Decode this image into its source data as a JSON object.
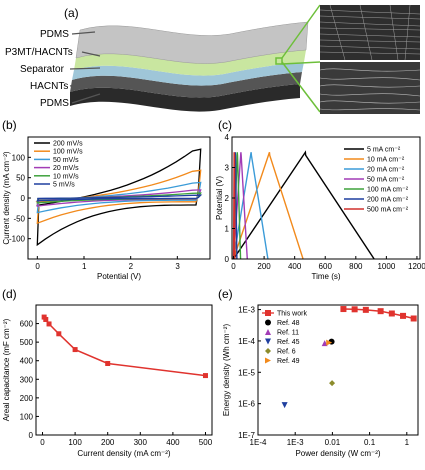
{
  "panels": {
    "a": "(a)",
    "b": "(b)",
    "c": "(c)",
    "d": "(d)",
    "e": "(e)"
  },
  "schematic": {
    "layers": [
      "PDMS",
      "P3MT/HACNTs",
      "Separator",
      "HACNTs",
      "PDMS"
    ],
    "colors": {
      "pdms": "#b9b9b9",
      "p3mt": "#c9e6a0",
      "separator": "#9fc6d8",
      "hacnt": "#3c3c3c",
      "zoom_line": "#6dbf3a"
    }
  },
  "chart_data": [
    {
      "type": "line",
      "title": "",
      "xlabel": "Potential (V)",
      "ylabel": "Current density (mA cm⁻²)",
      "xlim": [
        -0.2,
        3.7
      ],
      "ylim": [
        -150,
        150
      ],
      "xticks": [
        0,
        1,
        2,
        3
      ],
      "yticks": [
        -100,
        -50,
        0,
        50,
        100
      ],
      "legend_position": "top-left",
      "series": [
        {
          "name": "200 mV/s",
          "color": "#000000",
          "upper_at_3_5V": 120,
          "lower_at_0V": -115
        },
        {
          "name": "100 mV/s",
          "color": "#f28a1c",
          "upper_at_3_5V": 68,
          "lower_at_0V": -62
        },
        {
          "name": "50 mV/s",
          "color": "#3b9bd8",
          "upper_at_3_5V": 38,
          "lower_at_0V": -36
        },
        {
          "name": "20 mV/s",
          "color": "#a23cb6",
          "upper_at_3_5V": 20,
          "lower_at_0V": -20
        },
        {
          "name": "10 mV/s",
          "color": "#3ea23c",
          "upper_at_3_5V": 12,
          "lower_at_0V": -12
        },
        {
          "name": "5 mV/s",
          "color": "#1f3f9f",
          "upper_at_3_5V": 7,
          "lower_at_0V": -7
        }
      ]
    },
    {
      "type": "line",
      "title": "",
      "xlabel": "Time (s)",
      "ylabel": "Potential (V)",
      "xlim": [
        -10,
        1220
      ],
      "ylim": [
        0,
        4
      ],
      "xticks": [
        0,
        200,
        400,
        600,
        800,
        1000,
        1200
      ],
      "yticks": [
        0,
        1,
        2,
        3,
        4
      ],
      "legend_position": "top-right",
      "series": [
        {
          "name": "5 mA cm⁻²",
          "color": "#000000",
          "peak_time": 470,
          "end_time": 920,
          "peak_V": 3.5
        },
        {
          "name": "10 mA cm⁻²",
          "color": "#f28a1c",
          "peak_time": 235,
          "end_time": 455,
          "peak_V": 3.5
        },
        {
          "name": "20 mA cm⁻²",
          "color": "#3b9bd8",
          "peak_time": 115,
          "end_time": 225,
          "peak_V": 3.5
        },
        {
          "name": "50 mA cm⁻²",
          "color": "#a23cb6",
          "peak_time": 48,
          "end_time": 90,
          "peak_V": 3.5
        },
        {
          "name": "100 mA cm⁻²",
          "color": "#3ea23c",
          "peak_time": 24,
          "end_time": 46,
          "peak_V": 3.5
        },
        {
          "name": "200 mA cm⁻²",
          "color": "#1f3f9f",
          "peak_time": 11,
          "end_time": 22,
          "peak_V": 3.5
        },
        {
          "name": "500 mA cm⁻²",
          "color": "#d0312d",
          "peak_time": 4,
          "end_time": 9,
          "peak_V": 3.5
        }
      ]
    },
    {
      "type": "line",
      "title": "",
      "xlabel": "Current density (mA cm⁻²)",
      "ylabel": "Areal capacitance (mF cm⁻²)",
      "xlim": [
        -20,
        520
      ],
      "ylim": [
        0,
        700
      ],
      "xticks": [
        0,
        100,
        200,
        300,
        400,
        500
      ],
      "yticks": [
        0,
        100,
        200,
        300,
        400,
        500,
        600
      ],
      "series": [
        {
          "name": "",
          "color": "#e0332e",
          "x": [
            5,
            10,
            20,
            50,
            100,
            200,
            500
          ],
          "y": [
            635,
            622,
            598,
            545,
            460,
            385,
            320
          ]
        }
      ]
    },
    {
      "type": "scatter",
      "title": "",
      "xlabel": "Power density (W cm⁻²)",
      "ylabel": "Energy density (Wh cm⁻²)",
      "xscale": "log",
      "yscale": "log",
      "xlim": [
        0.0001,
        2
      ],
      "ylim": [
        1e-07,
        0.0014
      ],
      "xticks": [
        "1E-4",
        "1E-3",
        "0.01",
        "0.1",
        "1"
      ],
      "yticks": [
        "1E-7",
        "1E-6",
        "1E-5",
        "1E-4",
        "1E-3"
      ],
      "legend_position": "top-left",
      "series": [
        {
          "name": "This work",
          "color": "#e0332e",
          "marker": "square",
          "line": true,
          "x": [
            0.0198,
            0.0396,
            0.0792,
            0.198,
            0.396,
            0.792,
            1.53
          ],
          "y": [
            0.00104,
            0.00102,
            0.00098,
            0.00089,
            0.00075,
            0.00063,
            0.00052
          ]
        },
        {
          "name": "Ref. 48",
          "color": "#000000",
          "marker": "circle",
          "x": [
            0.0095
          ],
          "y": [
            9.5e-05
          ]
        },
        {
          "name": "Ref. 11",
          "color": "#a23cb6",
          "marker": "triangle-up",
          "x": [
            0.0062
          ],
          "y": [
            8.5e-05
          ]
        },
        {
          "name": "Ref. 45",
          "color": "#1f3f9f",
          "marker": "triangle-down",
          "x": [
            0.00052
          ],
          "y": [
            9e-07
          ]
        },
        {
          "name": "Ref. 6",
          "color": "#8c8c2c",
          "marker": "diamond",
          "x": [
            0.0098
          ],
          "y": [
            4.5e-06
          ]
        },
        {
          "name": "Ref. 49",
          "color": "#f28a1c",
          "marker": "triangle-right",
          "x": [
            0.0082
          ],
          "y": [
            8.8e-05
          ]
        }
      ]
    }
  ]
}
